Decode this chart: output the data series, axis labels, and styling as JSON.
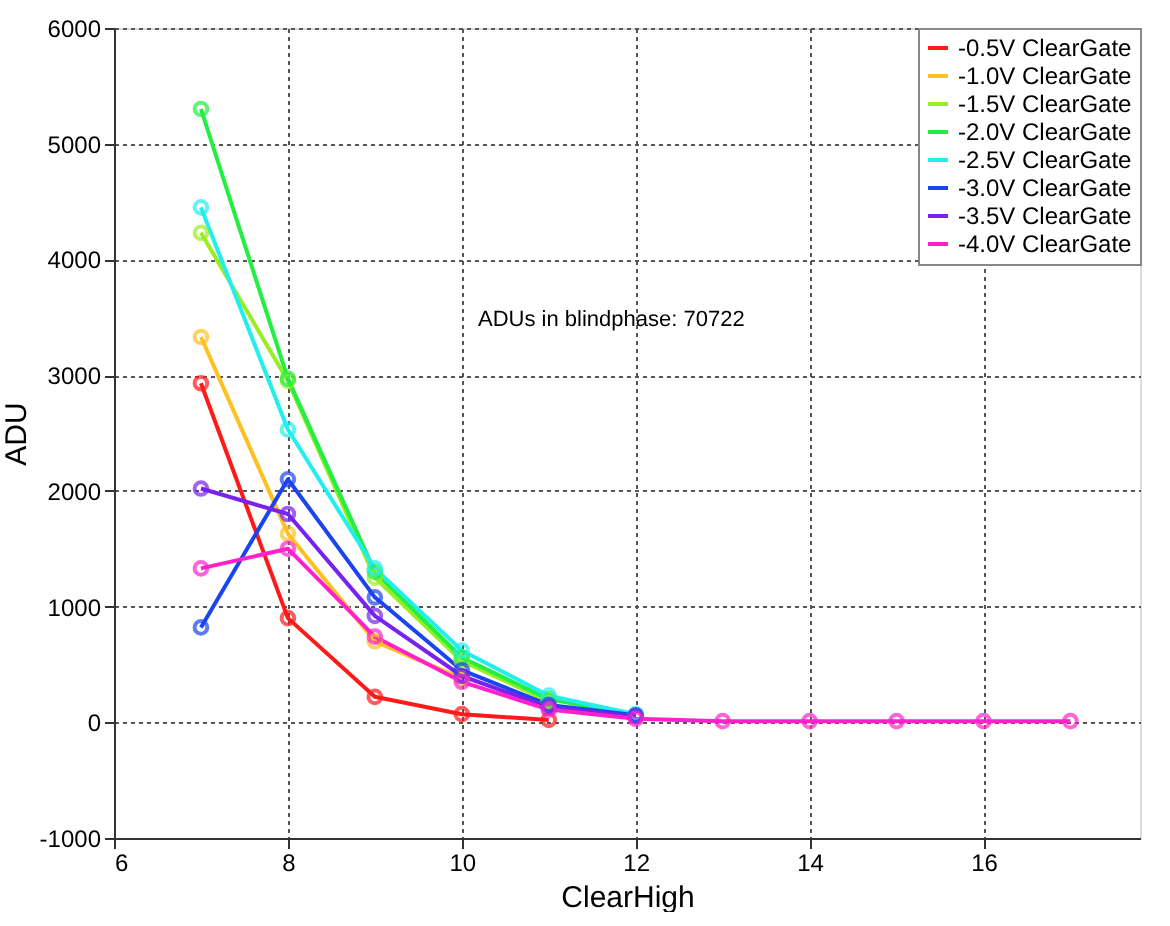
{
  "chart_data": {
    "type": "line",
    "xlabel": "ClearHigh",
    "ylabel": "ADU",
    "x": [
      7,
      8,
      9,
      10,
      11,
      12,
      13,
      14,
      15,
      16,
      17
    ],
    "xlim": [
      6,
      17.8
    ],
    "xticks": [
      6,
      8,
      10,
      12,
      14,
      16
    ],
    "ylim": [
      -1000,
      6000
    ],
    "yticks": [
      -1000,
      0,
      1000,
      2000,
      3000,
      4000,
      5000,
      6000
    ],
    "grid": true,
    "legend": "top right",
    "marker": "circle",
    "line_style": "solid",
    "annotations": [
      "ADUs in blindphase: 70722"
    ],
    "series": [
      {
        "name": "-0.5V ClearGate",
        "color": "#ff1a1a",
        "values": [
          2930,
          900,
          220,
          70,
          20,
          null,
          null,
          null,
          null,
          null,
          null
        ]
      },
      {
        "name": "-1.0V ClearGate",
        "color": "#ffc020",
        "values": [
          3330,
          1630,
          700,
          380,
          null,
          null,
          null,
          null,
          null,
          null,
          null
        ]
      },
      {
        "name": "-1.5V ClearGate",
        "color": "#99ee22",
        "values": [
          4230,
          2950,
          1250,
          530,
          180,
          null,
          null,
          null,
          null,
          null,
          null
        ]
      },
      {
        "name": "-2.0V ClearGate",
        "color": "#22ee44",
        "values": [
          5300,
          2970,
          1300,
          560,
          200,
          60,
          null,
          null,
          null,
          null,
          null
        ]
      },
      {
        "name": "-2.5V ClearGate",
        "color": "#22eeee",
        "values": [
          4450,
          2530,
          1330,
          620,
          230,
          70,
          null,
          null,
          null,
          null,
          null
        ]
      },
      {
        "name": "-3.0V ClearGate",
        "color": "#1a44ee",
        "values": [
          820,
          2100,
          1080,
          450,
          150,
          60,
          null,
          null,
          null,
          null,
          null
        ]
      },
      {
        "name": "-3.5V ClearGate",
        "color": "#7722ee",
        "values": [
          2020,
          1800,
          920,
          400,
          130,
          50,
          null,
          null,
          null,
          null,
          null
        ]
      },
      {
        "name": "-4.0V ClearGate",
        "color": "#ff22cc",
        "values": [
          1330,
          1500,
          740,
          350,
          110,
          30,
          10,
          10,
          10,
          10,
          10
        ]
      }
    ]
  }
}
